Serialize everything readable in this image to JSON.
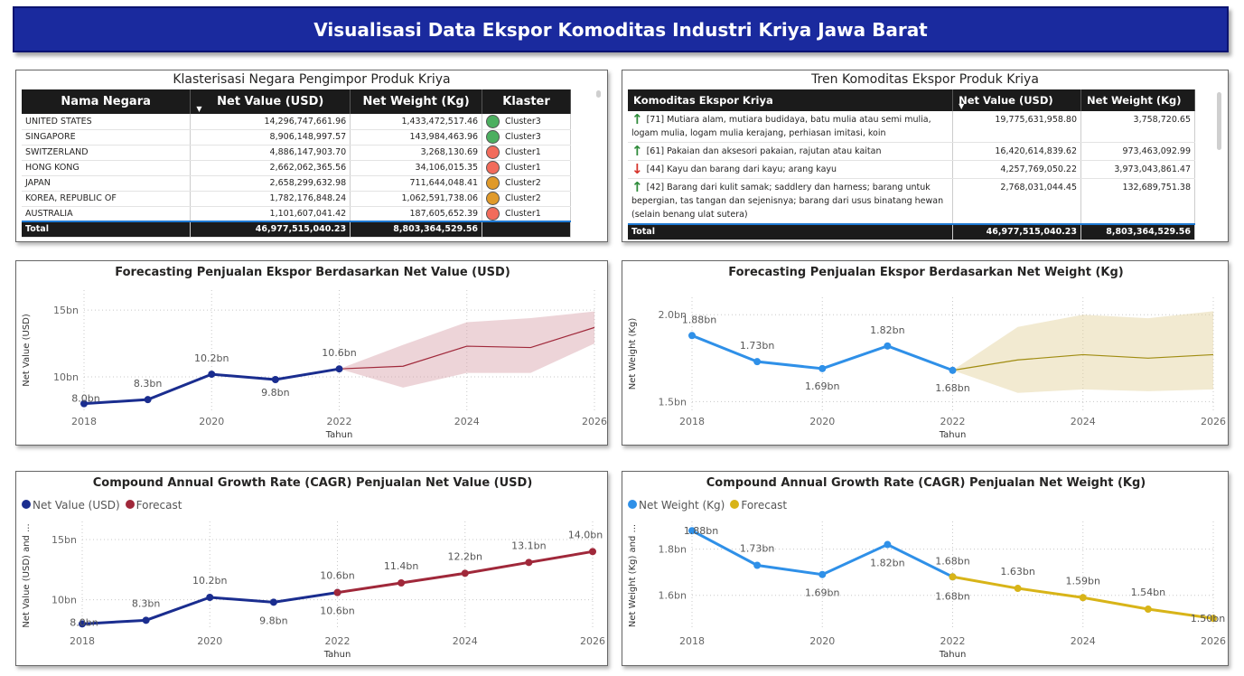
{
  "banner_title": "Visualisasi Data Ekspor Komoditas Industri Kriya Jawa Barat",
  "colors": {
    "banner": "#1a2a9e",
    "netvalue_line": "#1a2d8f",
    "netvalue_forecast": "#a0283a",
    "netweight_line": "#2f90e8",
    "netweight_forecast": "#d8b418",
    "cluster1": "#f26b5b",
    "cluster2": "#e09a2a",
    "cluster3": "#4caf60"
  },
  "cluster_table": {
    "title": "Klasterisasi Negara Pengimpor Produk Kriya",
    "headers": [
      "Nama Negara",
      "Net Value (USD)",
      "Net Weight (Kg)",
      "Klaster"
    ],
    "rows": [
      {
        "country": "UNITED STATES",
        "value": "14,296,747,661.96",
        "weight": "1,433,472,517.46",
        "cluster": "Cluster3",
        "color": "#4caf60"
      },
      {
        "country": "SINGAPORE",
        "value": "8,906,148,997.57",
        "weight": "143,984,463.96",
        "cluster": "Cluster3",
        "color": "#4caf60"
      },
      {
        "country": "SWITZERLAND",
        "value": "4,886,147,903.70",
        "weight": "3,268,130.69",
        "cluster": "Cluster1",
        "color": "#f26b5b"
      },
      {
        "country": "HONG KONG",
        "value": "2,662,062,365.56",
        "weight": "34,106,015.35",
        "cluster": "Cluster1",
        "color": "#f26b5b"
      },
      {
        "country": "JAPAN",
        "value": "2,658,299,632.98",
        "weight": "711,644,048.41",
        "cluster": "Cluster2",
        "color": "#e09a2a"
      },
      {
        "country": "KOREA, REPUBLIC OF",
        "value": "1,782,176,848.24",
        "weight": "1,062,591,738.06",
        "cluster": "Cluster2",
        "color": "#e09a2a"
      },
      {
        "country": "AUSTRALIA",
        "value": "1,101,607,041.42",
        "weight": "187,605,652.39",
        "cluster": "Cluster1",
        "color": "#f26b5b"
      }
    ],
    "total": {
      "label": "Total",
      "value": "46,977,515,040.23",
      "weight": "8,803,364,529.56"
    }
  },
  "trend_table": {
    "title": "Tren Komoditas Ekspor Produk Kriya",
    "headers": [
      "Komoditas Ekspor Kriya",
      "Net Value (USD)",
      "Net Weight (Kg)"
    ],
    "rows": [
      {
        "trend": "up",
        "name": "[71] Mutiara alam, mutiara budidaya, batu mulia atau semi mulia, logam mulia, logam mulia kerajang, perhiasan imitasi, koin",
        "value": "19,775,631,958.80",
        "weight": "3,758,720.65"
      },
      {
        "trend": "up",
        "name": "[61] Pakaian dan aksesori pakaian, rajutan atau kaitan",
        "value": "16,420,614,839.62",
        "weight": "973,463,092.99"
      },
      {
        "trend": "down",
        "name": "[44] Kayu dan barang dari kayu; arang kayu",
        "value": "4,257,769,050.22",
        "weight": "3,973,043,861.47"
      },
      {
        "trend": "up",
        "name": "[42] Barang dari kulit samak; saddlery dan harness; barang untuk bepergian, tas tangan dan sejenisnya; barang dari usus binatang hewan (selain benang ulat sutera)",
        "value": "2,768,031,044.45",
        "weight": "132,689,751.38"
      }
    ],
    "total": {
      "label": "Total",
      "value": "46,977,515,040.23",
      "weight": "8,803,364,529.56"
    }
  },
  "chart_data": [
    {
      "type": "line",
      "title": "Forecasting Penjualan Ekspor Berdasarkan Net Value (USD)",
      "xlabel": "Tahun",
      "ylabel": "Net Value (USD)",
      "xlim": [
        2018,
        2026
      ],
      "ylim": [
        7.5,
        16.5
      ],
      "xticks": [
        "2018",
        "2020",
        "2022",
        "2024",
        "2026"
      ],
      "yticks": [
        {
          "v": 10,
          "label": "10bn"
        },
        {
          "v": 15,
          "label": "15bn"
        }
      ],
      "series": [
        {
          "name": "Net Value (USD)",
          "x": [
            2018,
            2019,
            2020,
            2021,
            2022
          ],
          "y": [
            8.0,
            8.3,
            10.2,
            9.8,
            10.6
          ],
          "labels": [
            "8.0bn",
            "8.3bn",
            "10.2bn",
            "9.8bn",
            "10.6bn"
          ]
        },
        {
          "name": "Forecast",
          "x": [
            2022,
            2023,
            2024,
            2025,
            2026
          ],
          "y": [
            10.6,
            10.8,
            12.3,
            12.2,
            13.7
          ],
          "lower": [
            10.6,
            9.2,
            10.3,
            10.3,
            12.5
          ],
          "upper": [
            10.6,
            12.4,
            14.1,
            14.4,
            14.9
          ]
        }
      ]
    },
    {
      "type": "line",
      "title": "Forecasting Penjualan Ekspor Berdasarkan Net Weight (Kg)",
      "xlabel": "Tahun",
      "ylabel": "Net Weight (Kg)",
      "xlim": [
        2018,
        2026
      ],
      "ylim": [
        1.45,
        2.1
      ],
      "xticks": [
        "2018",
        "2020",
        "2022",
        "2024",
        "2026"
      ],
      "yticks": [
        {
          "v": 1.5,
          "label": "1.5bn"
        },
        {
          "v": 2.0,
          "label": "2.0bn"
        }
      ],
      "series": [
        {
          "name": "Net Weight (Kg)",
          "x": [
            2018,
            2019,
            2020,
            2021,
            2022
          ],
          "y": [
            1.88,
            1.73,
            1.69,
            1.82,
            1.68
          ],
          "labels": [
            "1.88bn",
            "1.73bn",
            "1.69bn",
            "1.82bn",
            "1.68bn"
          ]
        },
        {
          "name": "Forecast",
          "x": [
            2022,
            2023,
            2024,
            2025,
            2026
          ],
          "y": [
            1.68,
            1.74,
            1.77,
            1.75,
            1.77
          ],
          "lower": [
            1.68,
            1.55,
            1.57,
            1.56,
            1.57
          ],
          "upper": [
            1.68,
            1.93,
            2.0,
            1.98,
            2.02
          ]
        }
      ]
    },
    {
      "type": "line",
      "title": "Compound Annual Growth Rate (CAGR) Penjualan Net Value (USD)",
      "xlabel": "Tahun",
      "ylabel": "Net Value (USD) and ...",
      "xlim": [
        2018,
        2026
      ],
      "ylim": [
        7.5,
        16.5
      ],
      "xticks": [
        "2018",
        "2020",
        "2022",
        "2024",
        "2026"
      ],
      "yticks": [
        {
          "v": 10,
          "label": "10bn"
        },
        {
          "v": 15,
          "label": "15bn"
        }
      ],
      "legend": [
        "Net Value (USD)",
        "Forecast"
      ],
      "series": [
        {
          "name": "Net Value (USD)",
          "x": [
            2018,
            2019,
            2020,
            2021,
            2022
          ],
          "y": [
            8.0,
            8.3,
            10.2,
            9.8,
            10.6
          ],
          "labels": [
            "8.0bn",
            "8.3bn",
            "10.2bn",
            "9.8bn",
            "10.6bn"
          ]
        },
        {
          "name": "Forecast",
          "x": [
            2022,
            2023,
            2024,
            2025,
            2026
          ],
          "y": [
            10.6,
            11.4,
            12.2,
            13.1,
            14.0
          ],
          "labels": [
            "10.6bn",
            "11.4bn",
            "12.2bn",
            "13.1bn",
            "14.0bn"
          ]
        }
      ]
    },
    {
      "type": "line",
      "title": "Compound Annual Growth Rate (CAGR) Penjualan Net Weight (Kg)",
      "xlabel": "Tahun",
      "ylabel": "Net Weight (Kg) and ...",
      "xlim": [
        2018,
        2026
      ],
      "ylim": [
        1.45,
        1.92
      ],
      "xticks": [
        "2018",
        "2020",
        "2022",
        "2024",
        "2026"
      ],
      "yticks": [
        {
          "v": 1.6,
          "label": "1.6bn"
        },
        {
          "v": 1.8,
          "label": "1.8bn"
        }
      ],
      "legend": [
        "Net Weight (Kg)",
        "Forecast"
      ],
      "series": [
        {
          "name": "Net Weight (Kg)",
          "x": [
            2018,
            2019,
            2020,
            2021,
            2022
          ],
          "y": [
            1.88,
            1.73,
            1.69,
            1.82,
            1.68
          ],
          "labels": [
            "1.88bn",
            "1.73bn",
            "1.69bn",
            "1.82bn",
            "1.68bn"
          ]
        },
        {
          "name": "Forecast",
          "x": [
            2022,
            2023,
            2024,
            2025,
            2026
          ],
          "y": [
            1.68,
            1.63,
            1.59,
            1.54,
            1.5
          ],
          "labels": [
            "1.68bn",
            "1.63bn",
            "1.59bn",
            "1.54bn",
            "1.50bn"
          ]
        }
      ]
    }
  ]
}
